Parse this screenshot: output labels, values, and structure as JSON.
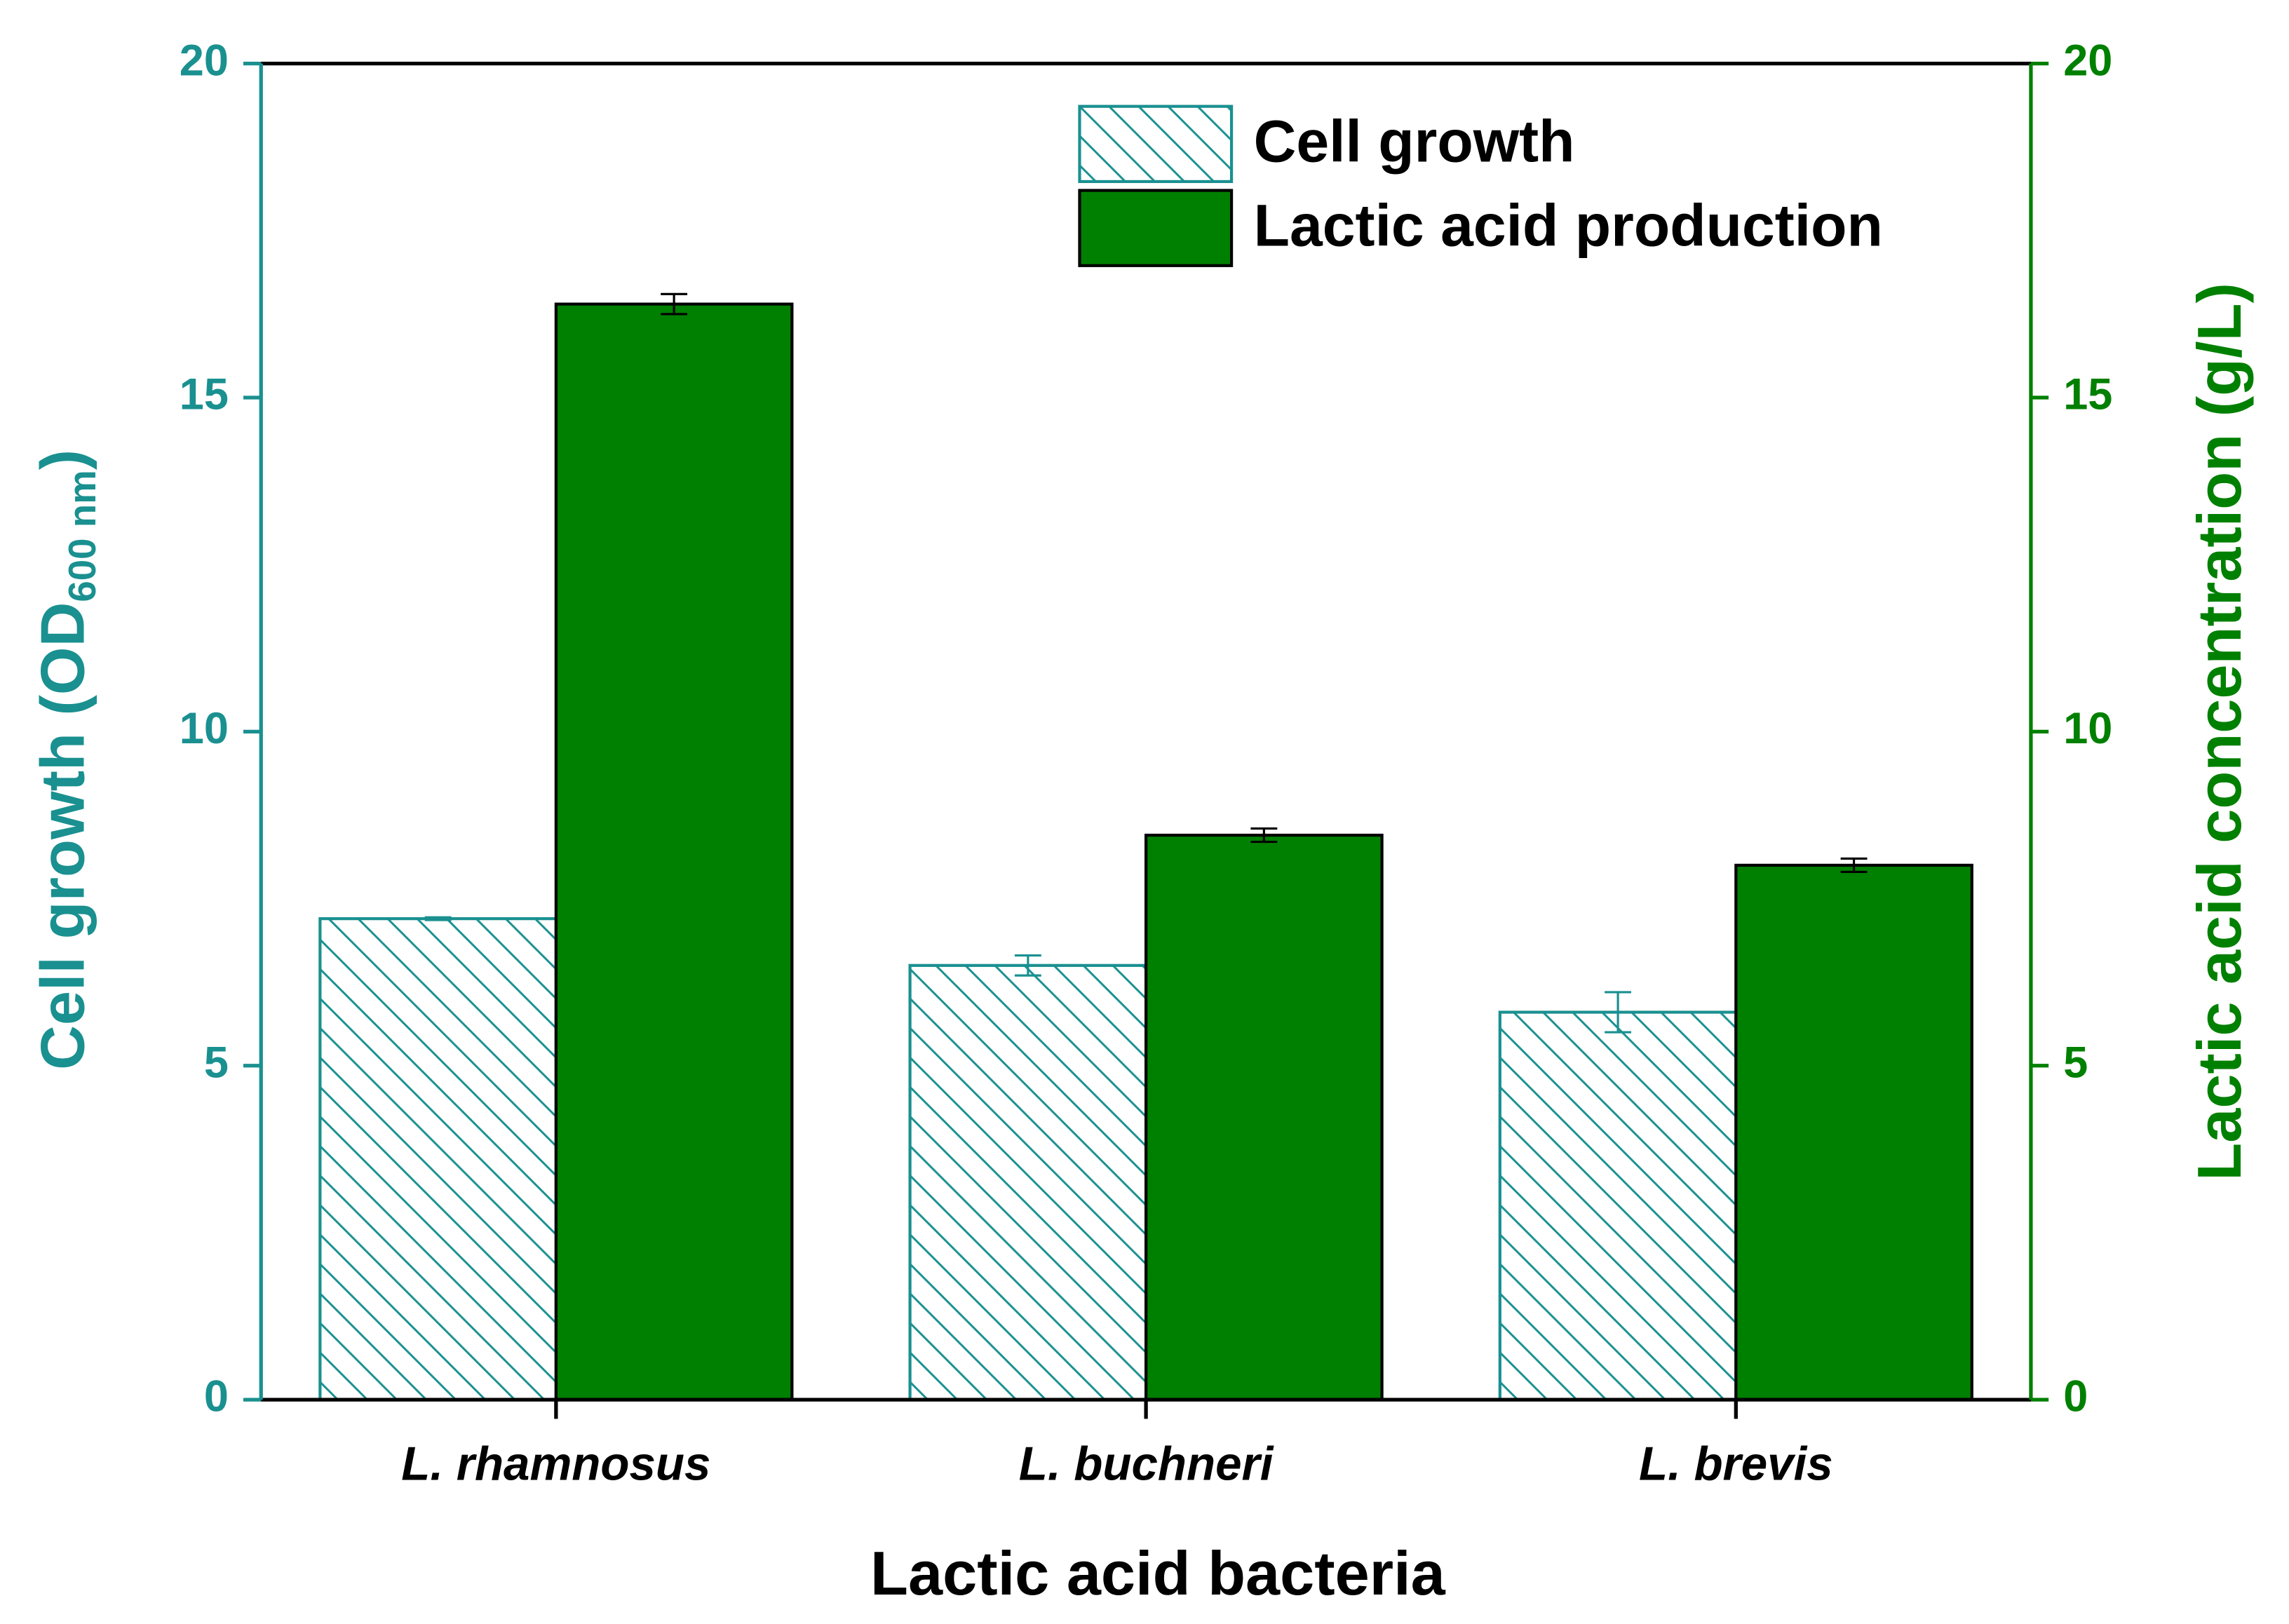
{
  "chart_data": {
    "type": "bar",
    "categories": [
      "L. rhamnosus",
      "L. buchneri",
      "L. brevis"
    ],
    "xlabel": "Lactic acid bacteria",
    "ylabel_parts": [
      "Cell growth (OD",
      "600 nm",
      ")"
    ],
    "y2label": "Lactic acid concentration (g/L)",
    "ylim": [
      0,
      20
    ],
    "yticks": [
      0,
      5,
      10,
      15,
      20
    ],
    "y2lim": [
      0,
      20
    ],
    "y2ticks": [
      0,
      5,
      10,
      15,
      20
    ],
    "y_color": "#1a9090",
    "y2_color": "#008000",
    "legend": "upper right",
    "series": [
      {
        "name": "Cell growth",
        "color": "#1a9090",
        "hatch": true,
        "axis": "y",
        "values": [
          7.2,
          6.5,
          5.8
        ],
        "errors": [
          0.02,
          0.15,
          0.3
        ]
      },
      {
        "name": "Lactic acid production",
        "color": "#008000",
        "hatch": false,
        "axis": "y2",
        "values": [
          16.4,
          8.45,
          8.0
        ],
        "errors": [
          0.15,
          0.1,
          0.1
        ]
      }
    ]
  }
}
